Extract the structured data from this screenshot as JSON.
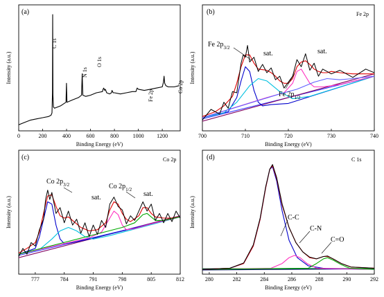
{
  "chart_data": [
    {
      "panel": "(a)",
      "type": "line",
      "xlabel": "Binding Energy (eV)",
      "ylabel": "Intensity (a.u.)",
      "xlim": [
        0,
        1350
      ],
      "ylim": [
        0,
        1
      ],
      "xticks": [
        0,
        200,
        400,
        600,
        800,
        1000,
        1200
      ],
      "annotations": [
        {
          "text": "C 1s",
          "x": 284
        },
        {
          "text": "N 1s",
          "x": 399
        },
        {
          "text": "O 1s",
          "x": 531
        },
        {
          "text": "Fe 2p",
          "x": 711
        },
        {
          "text": "Co 2p",
          "x": 780
        }
      ],
      "series": [
        {
          "role": "survey",
          "color": "#000000",
          "x": [
            0,
            50,
            100,
            150,
            200,
            250,
            270,
            278,
            282,
            284,
            286,
            290,
            300,
            350,
            395,
            399,
            403,
            450,
            500,
            525,
            531,
            536,
            560,
            600,
            650,
            700,
            705,
            711,
            718,
            724,
            735,
            760,
            775,
            780,
            790,
            800,
            850,
            900,
            950,
            980,
            990,
            1000,
            1050,
            1100,
            1150,
            1200,
            1210,
            1215,
            1220,
            1230,
            1250,
            1300,
            1340
          ],
          "y": [
            0.03,
            0.05,
            0.07,
            0.08,
            0.09,
            0.1,
            0.11,
            0.13,
            0.3,
            0.96,
            0.28,
            0.18,
            0.17,
            0.19,
            0.22,
            0.38,
            0.22,
            0.24,
            0.26,
            0.28,
            0.46,
            0.28,
            0.27,
            0.28,
            0.3,
            0.31,
            0.33,
            0.34,
            0.32,
            0.33,
            0.3,
            0.29,
            0.3,
            0.32,
            0.3,
            0.3,
            0.29,
            0.3,
            0.31,
            0.31,
            0.34,
            0.33,
            0.32,
            0.33,
            0.34,
            0.35,
            0.39,
            0.44,
            0.38,
            0.36,
            0.35,
            0.35,
            0.36
          ]
        }
      ]
    },
    {
      "panel": "(b)",
      "type": "line",
      "title": "Fe 2p",
      "xlabel": "Binding Energy (eV)",
      "ylabel": "Intensity (a.u.)",
      "xlim": [
        700,
        740
      ],
      "ylim": [
        0,
        1
      ],
      "xticks": [
        700,
        710,
        720,
        730,
        740
      ],
      "annotations": [
        {
          "text": "Fe 2p",
          "sub": "3/2"
        },
        {
          "text": "sat."
        },
        {
          "text": "sat."
        },
        {
          "text": "Fe 2p",
          "sub": "1/2"
        }
      ],
      "series": [
        {
          "role": "baseline",
          "color": "#3a3aff",
          "x": [
            700,
            740
          ],
          "y": [
            0.08,
            0.44
          ]
        },
        {
          "role": "background",
          "color": "#800060",
          "x": [
            700,
            740
          ],
          "y": [
            0.06,
            0.46
          ]
        },
        {
          "role": "fit",
          "color": "#e00000",
          "x": [
            700,
            703,
            705,
            707,
            708,
            709,
            710,
            711,
            712,
            713,
            715,
            716,
            717,
            718,
            719,
            720,
            721,
            722,
            723,
            724,
            725,
            726,
            727,
            728,
            729,
            730,
            732,
            735,
            740
          ],
          "y": [
            0.1,
            0.14,
            0.19,
            0.27,
            0.38,
            0.52,
            0.62,
            0.62,
            0.55,
            0.5,
            0.49,
            0.47,
            0.44,
            0.4,
            0.38,
            0.38,
            0.42,
            0.52,
            0.56,
            0.57,
            0.54,
            0.5,
            0.48,
            0.47,
            0.47,
            0.48,
            0.47,
            0.46,
            0.46
          ]
        },
        {
          "role": "Fe 2p3/2",
          "color": "#0000cc",
          "x": [
            700,
            706,
            708,
            709,
            710,
            711,
            712,
            713,
            714,
            716,
            720,
            740
          ],
          "y": [
            0.09,
            0.14,
            0.26,
            0.4,
            0.52,
            0.48,
            0.32,
            0.22,
            0.19,
            0.2,
            0.21,
            0.44
          ]
        },
        {
          "role": "Fe 2p3/2 sat.",
          "color": "#00c0e0",
          "x": [
            700,
            705,
            708,
            711,
            713,
            715,
            718,
            721,
            725,
            740
          ],
          "y": [
            0.09,
            0.13,
            0.22,
            0.36,
            0.42,
            0.4,
            0.31,
            0.25,
            0.27,
            0.44
          ]
        },
        {
          "role": "Fe 2p1/2",
          "color": "#ff30c0",
          "x": [
            700,
            715,
            719,
            721,
            722,
            723,
            724,
            725,
            726,
            728,
            732,
            740
          ],
          "y": [
            0.09,
            0.26,
            0.3,
            0.38,
            0.48,
            0.5,
            0.44,
            0.38,
            0.35,
            0.35,
            0.37,
            0.44
          ]
        },
        {
          "role": "Fe 2p1/2 sat.",
          "color": "#6060ff",
          "x": [
            700,
            718,
            722,
            726,
            729,
            732,
            735,
            740
          ],
          "y": [
            0.09,
            0.29,
            0.33,
            0.39,
            0.42,
            0.41,
            0.42,
            0.44
          ]
        },
        {
          "role": "data",
          "color": "#000000",
          "x": [
            700,
            702,
            704,
            705,
            706,
            707,
            708,
            709,
            709.5,
            710,
            710.5,
            711,
            712,
            713,
            714,
            715,
            716,
            717,
            718,
            719,
            720,
            721,
            722,
            723,
            724,
            725,
            726,
            727,
            728,
            730,
            732,
            735,
            738,
            740
          ],
          "y": [
            0.07,
            0.16,
            0.12,
            0.22,
            0.17,
            0.31,
            0.3,
            0.55,
            0.62,
            0.6,
            0.7,
            0.56,
            0.6,
            0.48,
            0.54,
            0.47,
            0.51,
            0.41,
            0.44,
            0.34,
            0.39,
            0.44,
            0.58,
            0.52,
            0.63,
            0.49,
            0.55,
            0.44,
            0.5,
            0.46,
            0.49,
            0.43,
            0.5,
            0.47
          ]
        }
      ]
    },
    {
      "panel": "(c)",
      "type": "line",
      "title": "Co 2p",
      "xlabel": "Binding Energy (eV)",
      "ylabel": "Intensity (a.u.)",
      "xlim": [
        773,
        812
      ],
      "ylim": [
        0,
        1
      ],
      "xticks": [
        777,
        784,
        791,
        798,
        805,
        812
      ],
      "annotations": [
        {
          "text": "Co 2p",
          "sub": "3/2"
        },
        {
          "text": "sat."
        },
        {
          "text": "Co 2p",
          "sub": "1/2"
        },
        {
          "text": "sat."
        }
      ],
      "series": [
        {
          "role": "background",
          "color": "#800060",
          "x": [
            773,
            812
          ],
          "y": [
            0.12,
            0.48
          ]
        },
        {
          "role": "baseline",
          "color": "#3a3aff",
          "x": [
            773,
            812
          ],
          "y": [
            0.14,
            0.47
          ]
        },
        {
          "role": "fit",
          "color": "#e00000",
          "x": [
            773,
            775,
            777,
            778,
            779,
            780,
            781,
            782,
            783,
            784,
            785,
            786,
            788,
            790,
            792,
            794,
            795,
            796,
            797,
            798,
            799,
            800,
            802,
            803,
            804,
            805,
            806,
            808,
            810,
            812
          ],
          "y": [
            0.16,
            0.2,
            0.25,
            0.34,
            0.5,
            0.65,
            0.66,
            0.56,
            0.48,
            0.46,
            0.47,
            0.44,
            0.38,
            0.35,
            0.36,
            0.42,
            0.53,
            0.6,
            0.58,
            0.5,
            0.45,
            0.43,
            0.48,
            0.55,
            0.55,
            0.5,
            0.47,
            0.46,
            0.46,
            0.47
          ]
        },
        {
          "role": "Co 2p3/2",
          "color": "#0000cc",
          "x": [
            773,
            777,
            778,
            779,
            780,
            781,
            782,
            783,
            784,
            786,
            790,
            812
          ],
          "y": [
            0.15,
            0.2,
            0.3,
            0.45,
            0.6,
            0.58,
            0.4,
            0.28,
            0.24,
            0.25,
            0.28,
            0.47
          ]
        },
        {
          "role": "Co 2p3/2 sat.",
          "color": "#00c0e0",
          "x": [
            773,
            778,
            781,
            783,
            785,
            787,
            789,
            791,
            795,
            812
          ],
          "y": [
            0.15,
            0.19,
            0.28,
            0.35,
            0.38,
            0.35,
            0.3,
            0.28,
            0.31,
            0.47
          ]
        },
        {
          "role": "Co 2p1/2",
          "color": "#ff30c0",
          "x": [
            773,
            790,
            793,
            795,
            796,
            797,
            798,
            799,
            801,
            805,
            812
          ],
          "y": [
            0.15,
            0.29,
            0.34,
            0.46,
            0.52,
            0.49,
            0.4,
            0.36,
            0.37,
            0.41,
            0.47
          ]
        },
        {
          "role": "Co 2p1/2 sat.",
          "color": "#00aa00",
          "x": [
            773,
            798,
            801,
            803,
            804,
            806,
            808,
            812
          ],
          "y": [
            0.15,
            0.38,
            0.42,
            0.49,
            0.5,
            0.44,
            0.44,
            0.47
          ]
        },
        {
          "role": "data",
          "color": "#000000",
          "x": [
            773,
            774,
            775,
            776,
            777,
            778,
            779,
            779.5,
            780,
            780.5,
            781,
            782,
            783,
            784,
            785,
            786,
            787,
            788,
            789,
            790,
            791,
            792,
            793,
            794,
            795,
            796,
            797,
            798,
            799,
            800,
            801,
            802,
            803,
            804,
            805,
            806,
            807,
            808,
            809,
            810,
            811,
            812
          ],
          "y": [
            0.13,
            0.2,
            0.15,
            0.25,
            0.22,
            0.36,
            0.45,
            0.62,
            0.7,
            0.62,
            0.68,
            0.5,
            0.55,
            0.42,
            0.52,
            0.4,
            0.45,
            0.33,
            0.42,
            0.3,
            0.4,
            0.32,
            0.44,
            0.38,
            0.58,
            0.64,
            0.56,
            0.53,
            0.41,
            0.48,
            0.44,
            0.52,
            0.6,
            0.52,
            0.58,
            0.44,
            0.5,
            0.42,
            0.5,
            0.43,
            0.52,
            0.46
          ]
        }
      ]
    },
    {
      "panel": "(d)",
      "type": "line",
      "title": "C 1s",
      "xlabel": "Binding Energy (eV)",
      "ylabel": "Intensity (a.u.)",
      "xlim": [
        279.5,
        292
      ],
      "ylim": [
        0,
        1
      ],
      "xticks": [
        280,
        282,
        284,
        286,
        288,
        290,
        292
      ],
      "annotations": [
        {
          "text": "C-C"
        },
        {
          "text": "C-N"
        },
        {
          "text": "C=O"
        }
      ],
      "series": [
        {
          "role": "baseline",
          "color": "#000060",
          "x": [
            279.5,
            292
          ],
          "y": [
            0.015,
            0.025
          ]
        },
        {
          "role": "background",
          "color": "#008040",
          "x": [
            279.5,
            292
          ],
          "y": [
            0.025,
            0.028
          ]
        },
        {
          "role": "C-C",
          "color": "#0000cc",
          "x": [
            279.5,
            281.5,
            282.5,
            283.2,
            283.7,
            284.1,
            284.4,
            284.6,
            284.9,
            285.3,
            285.8,
            286.4,
            287.2,
            288.5,
            292
          ],
          "y": [
            0.02,
            0.03,
            0.07,
            0.22,
            0.45,
            0.72,
            0.88,
            0.9,
            0.78,
            0.52,
            0.27,
            0.12,
            0.05,
            0.025,
            0.02
          ]
        },
        {
          "role": "C-N",
          "color": "#ff30c0",
          "x": [
            279.5,
            284.5,
            285.3,
            285.8,
            286.2,
            286.6,
            287.1,
            287.8,
            292
          ],
          "y": [
            0.02,
            0.03,
            0.07,
            0.12,
            0.14,
            0.12,
            0.07,
            0.03,
            0.02
          ]
        },
        {
          "role": "C=O",
          "color": "#00aa00",
          "x": [
            279.5,
            287.2,
            287.8,
            288.3,
            288.6,
            289.0,
            289.6,
            290.2,
            292
          ],
          "y": [
            0.02,
            0.03,
            0.07,
            0.11,
            0.12,
            0.1,
            0.06,
            0.03,
            0.02
          ]
        },
        {
          "role": "fit",
          "color": "#e00000",
          "x": [
            279.5,
            281.5,
            282.5,
            283.2,
            283.7,
            284.1,
            284.4,
            284.6,
            284.9,
            285.3,
            285.8,
            286.3,
            286.8,
            287.3,
            287.8,
            288.3,
            288.6,
            289.0,
            289.6,
            290.3,
            292
          ],
          "y": [
            0.02,
            0.03,
            0.07,
            0.22,
            0.45,
            0.72,
            0.88,
            0.91,
            0.8,
            0.57,
            0.38,
            0.25,
            0.17,
            0.12,
            0.11,
            0.13,
            0.13,
            0.11,
            0.07,
            0.04,
            0.03
          ]
        },
        {
          "role": "data",
          "color": "#000000",
          "x": [
            279.5,
            281.5,
            282.5,
            283.2,
            283.7,
            284.1,
            284.4,
            284.6,
            284.9,
            285.3,
            285.8,
            286.3,
            286.8,
            287.3,
            287.8,
            288.3,
            288.6,
            289.0,
            289.6,
            290.3,
            292
          ],
          "y": [
            0.02,
            0.03,
            0.075,
            0.23,
            0.46,
            0.73,
            0.88,
            0.92,
            0.81,
            0.58,
            0.38,
            0.25,
            0.17,
            0.125,
            0.11,
            0.13,
            0.135,
            0.11,
            0.07,
            0.04,
            0.03
          ]
        }
      ]
    }
  ]
}
